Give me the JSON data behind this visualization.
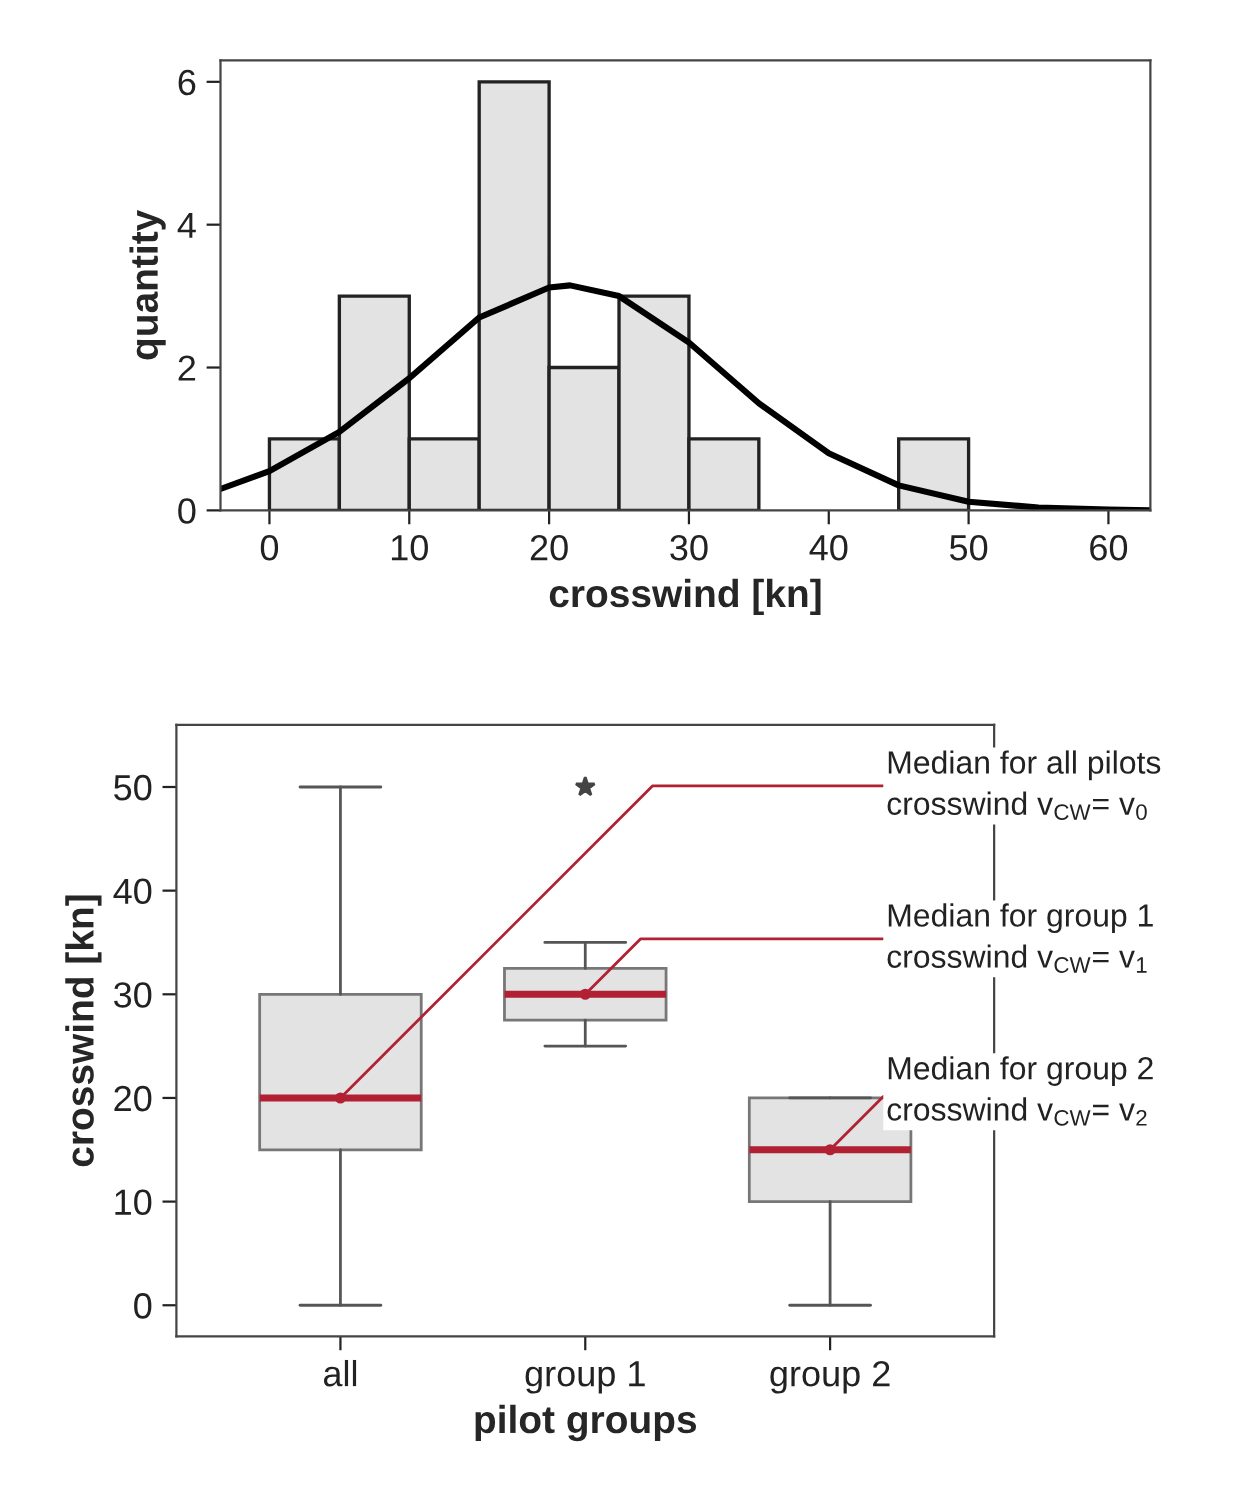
{
  "chart_data": [
    {
      "type": "histogram",
      "xlabel": "crosswind [kn]",
      "ylabel": "quantity",
      "bins": [
        0,
        5,
        10,
        15,
        20,
        25,
        30,
        35,
        40,
        45,
        50
      ],
      "values": [
        1,
        3,
        1,
        6,
        2,
        3,
        1,
        0,
        0,
        1
      ],
      "color": "#e3e3e3",
      "series": [
        {
          "type": "line",
          "color": "#000000",
          "x": [
            -3.5,
            0,
            5,
            10,
            15,
            20,
            21.5,
            25,
            30,
            35,
            40,
            45,
            50,
            55,
            60,
            63
          ],
          "values": [
            0.3,
            0.55,
            1.1,
            1.85,
            2.7,
            3.12,
            3.15,
            3.0,
            2.35,
            1.5,
            0.8,
            0.35,
            0.12,
            0.04,
            0.01,
            0.0
          ]
        }
      ],
      "xlim": [
        -3.5,
        63
      ],
      "ylim": [
        0,
        6.3
      ],
      "xticks": [
        0,
        10,
        20,
        30,
        40,
        50,
        60
      ],
      "yticks": [
        0,
        2,
        4,
        6
      ],
      "grid": false
    },
    {
      "type": "box",
      "xlabel": "pilot groups",
      "ylabel": "crosswind [kn]",
      "categories": [
        "all",
        "group 1",
        "group 2"
      ],
      "series": [
        {
          "color": "#e3e3e3",
          "boxes": [
            {
              "low": 0,
              "q1": 15,
              "median": 20,
              "q3": 30,
              "high": 50
            },
            {
              "low": 25,
              "q1": 27.5,
              "median": 30,
              "q3": 32.5,
              "high": 35,
              "outliers": [
                50
              ]
            },
            {
              "low": 0,
              "q1": 10,
              "median": 15,
              "q3": 20,
              "high": 20
            }
          ]
        }
      ],
      "ylim": [
        -3,
        56
      ],
      "yticks": [
        0,
        10,
        20,
        30,
        40,
        50
      ],
      "grid": false,
      "annotations": [
        {
          "text": "Median for all pilots\ncrosswind v$_{CW}$= v$_{0}$",
          "x": "all",
          "y": 20
        },
        {
          "text": "Median for group 1\ncrosswind v$_{CW}$= v$_{1}$",
          "x": "group 1",
          "y": 30
        },
        {
          "text": "Median for group 2\ncrosswind v$_{CW}$= v$_{2}$",
          "x": "group 2",
          "y": 15
        }
      ]
    }
  ]
}
